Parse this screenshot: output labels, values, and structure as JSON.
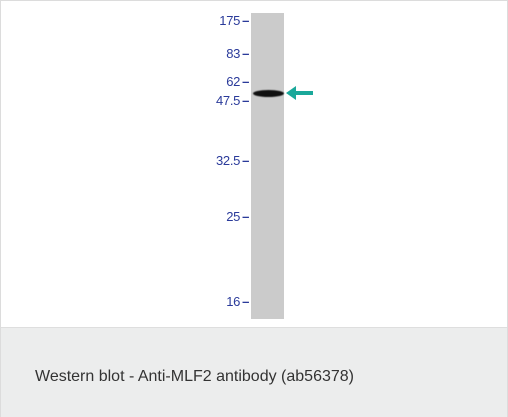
{
  "figure": {
    "markers": [
      {
        "label": "175",
        "kda": 175
      },
      {
        "label": "83",
        "kda": 83
      },
      {
        "label": "62",
        "kda": 62
      },
      {
        "label": "47.5",
        "kda": 47.5
      },
      {
        "label": "32.5",
        "kda": 32.5
      },
      {
        "label": "25",
        "kda": 25
      },
      {
        "label": "16",
        "kda": 16
      }
    ],
    "band_kda": 55,
    "arrow_color": "#1aa89a"
  },
  "caption": {
    "text": "Western blot - Anti-MLF2 antibody (ab56378)"
  }
}
